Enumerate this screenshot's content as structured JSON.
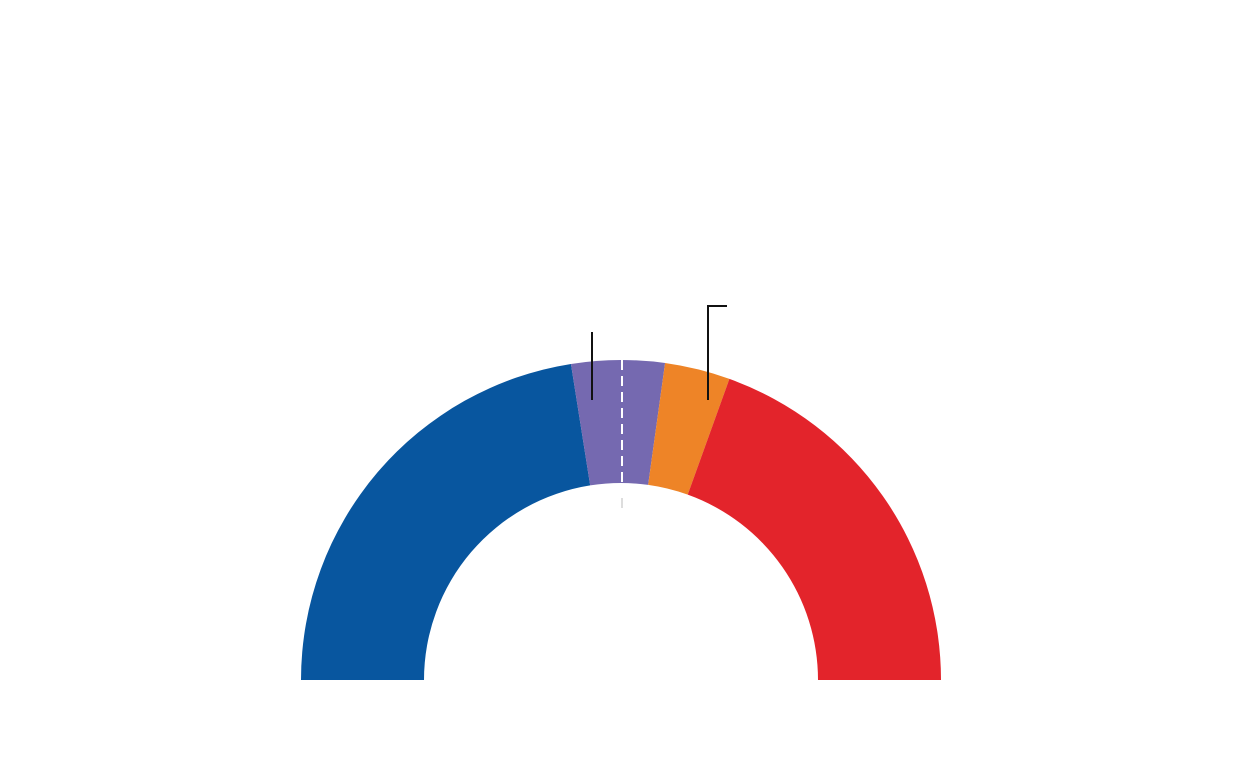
{
  "chart_data": {
    "type": "half-donut",
    "categories": [
      null,
      null,
      null,
      null
    ],
    "values": [
      45,
      9.4,
      6.6,
      39
    ],
    "colors": [
      "#08569f",
      "#7569b0",
      "#ee8427",
      "#e3242b"
    ]
  }
}
